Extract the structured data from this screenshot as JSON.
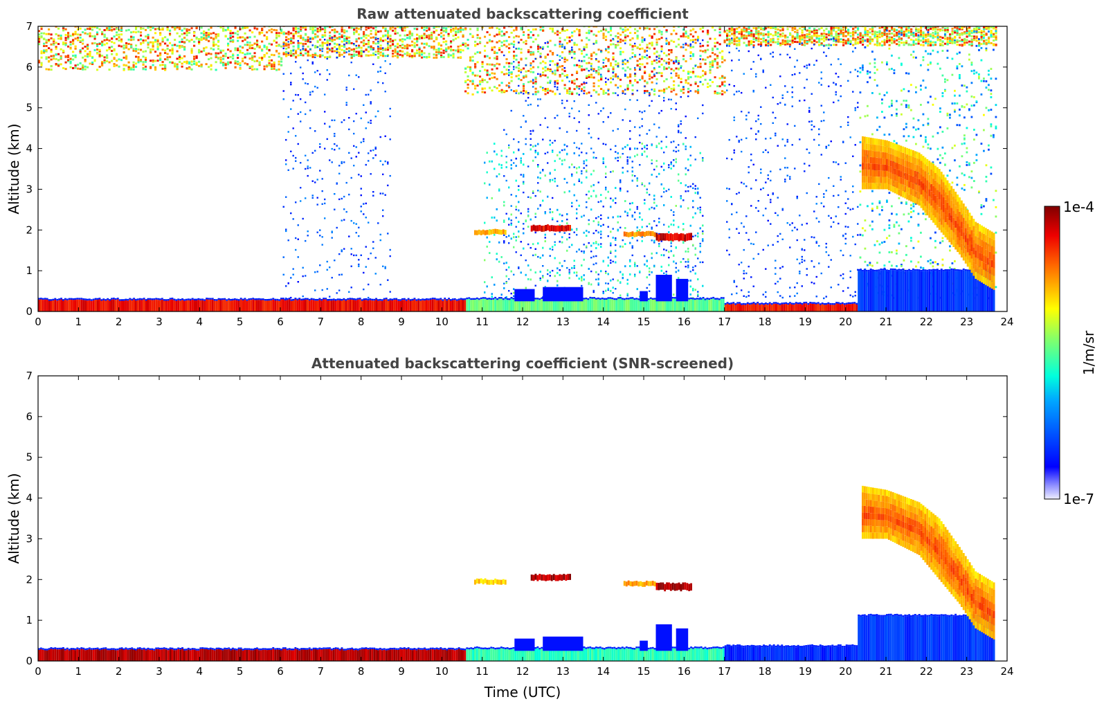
{
  "chart_data": [
    {
      "type": "heatmap",
      "title": "Raw attenuated backscattering coefficient",
      "xlabel": "",
      "ylabel": "Altitude (km)",
      "xlim": [
        0,
        24
      ],
      "ylim": [
        0,
        7
      ],
      "x_ticks": [
        "0",
        "1",
        "2",
        "3",
        "4",
        "5",
        "6",
        "7",
        "8",
        "9",
        "10",
        "11",
        "12",
        "13",
        "14",
        "15",
        "16",
        "17",
        "18",
        "19",
        "20",
        "21",
        "22",
        "23",
        "24"
      ],
      "y_ticks": [
        "0",
        "1",
        "2",
        "3",
        "4",
        "5",
        "6",
        "7"
      ],
      "data_time_range": [
        0,
        23.7
      ],
      "features": {
        "surface_layer": [
          {
            "t0": 0,
            "t1": 10.6,
            "z0": 0.0,
            "z1": 0.28,
            "level": 0.93
          },
          {
            "t0": 10.6,
            "t1": 17.0,
            "z0": 0.0,
            "z1": 0.3,
            "level": 0.55
          },
          {
            "t0": 17.0,
            "t1": 20.3,
            "z0": 0.0,
            "z1": 0.18,
            "level": 0.92
          },
          {
            "t0": 20.3,
            "t1": 23.7,
            "z0": 0.0,
            "z1": 1.0,
            "level": 0.22
          }
        ],
        "cloud_2km": [
          {
            "t0": 10.8,
            "t1": 11.6,
            "z": 1.95,
            "thick": 0.12,
            "level": 0.78
          },
          {
            "t0": 12.2,
            "t1": 13.2,
            "z": 2.05,
            "thick": 0.15,
            "level": 0.95
          },
          {
            "t0": 14.5,
            "t1": 15.3,
            "z": 1.9,
            "thick": 0.12,
            "level": 0.8
          },
          {
            "t0": 15.3,
            "t1": 16.2,
            "z": 1.82,
            "thick": 0.18,
            "level": 0.97
          }
        ],
        "descending_cloud": [
          {
            "t": 20.4,
            "ztop": 4.3,
            "zbot": 3.0
          },
          {
            "t": 21.0,
            "ztop": 4.2,
            "zbot": 3.0
          },
          {
            "t": 21.8,
            "ztop": 3.9,
            "zbot": 2.6
          },
          {
            "t": 22.3,
            "ztop": 3.5,
            "zbot": 2.0
          },
          {
            "t": 22.8,
            "ztop": 2.8,
            "zbot": 1.4
          },
          {
            "t": 23.2,
            "ztop": 2.2,
            "zbot": 0.8
          },
          {
            "t": 23.7,
            "ztop": 1.9,
            "zbot": 0.5
          }
        ],
        "upper_noise_top_z": 7.0
      }
    },
    {
      "type": "heatmap",
      "title": "Attenuated backscattering coefficient (SNR-screened)",
      "xlabel": "Time (UTC)",
      "ylabel": "Altitude (km)",
      "xlim": [
        0,
        24
      ],
      "ylim": [
        0,
        7
      ],
      "x_ticks": [
        "0",
        "1",
        "2",
        "3",
        "4",
        "5",
        "6",
        "7",
        "8",
        "9",
        "10",
        "11",
        "12",
        "13",
        "14",
        "15",
        "16",
        "17",
        "18",
        "19",
        "20",
        "21",
        "22",
        "23",
        "24"
      ],
      "y_ticks": [
        "0",
        "1",
        "2",
        "3",
        "4",
        "5",
        "6",
        "7"
      ],
      "data_time_range": [
        0,
        23.7
      ],
      "features": {
        "surface_layer": [
          {
            "t0": 0,
            "t1": 10.6,
            "z0": 0.0,
            "z1": 0.28,
            "level": 0.99
          },
          {
            "t0": 10.6,
            "t1": 17.0,
            "z0": 0.0,
            "z1": 0.3,
            "level": 0.5
          },
          {
            "t0": 17.0,
            "t1": 20.3,
            "z0": 0.0,
            "z1": 0.35,
            "level": 0.2
          },
          {
            "t0": 20.3,
            "t1": 23.7,
            "z0": 0.0,
            "z1": 1.1,
            "level": 0.22
          }
        ],
        "cloud_2km": [
          {
            "t0": 10.8,
            "t1": 11.6,
            "z": 1.95,
            "thick": 0.12,
            "level": 0.75
          },
          {
            "t0": 12.2,
            "t1": 13.2,
            "z": 2.05,
            "thick": 0.15,
            "level": 1.0
          },
          {
            "t0": 14.5,
            "t1": 15.3,
            "z": 1.9,
            "thick": 0.12,
            "level": 0.78
          },
          {
            "t0": 15.3,
            "t1": 16.2,
            "z": 1.82,
            "thick": 0.18,
            "level": 1.0
          }
        ],
        "descending_cloud": [
          {
            "t": 20.4,
            "ztop": 4.3,
            "zbot": 3.0
          },
          {
            "t": 21.0,
            "ztop": 4.2,
            "zbot": 3.0
          },
          {
            "t": 21.8,
            "ztop": 3.9,
            "zbot": 2.6
          },
          {
            "t": 22.3,
            "ztop": 3.5,
            "zbot": 2.0
          },
          {
            "t": 22.8,
            "ztop": 2.8,
            "zbot": 1.4
          },
          {
            "t": 23.2,
            "ztop": 2.2,
            "zbot": 0.8
          },
          {
            "t": 23.7,
            "ztop": 1.9,
            "zbot": 0.5
          }
        ],
        "upper_noise_top_z": 0
      }
    }
  ],
  "colorbar": {
    "min_label": "1e-7",
    "max_label": "1e-4",
    "label": "1/m/sr",
    "scale": "log",
    "range": [
      1e-07,
      0.0001
    ],
    "colormap": "jet"
  }
}
